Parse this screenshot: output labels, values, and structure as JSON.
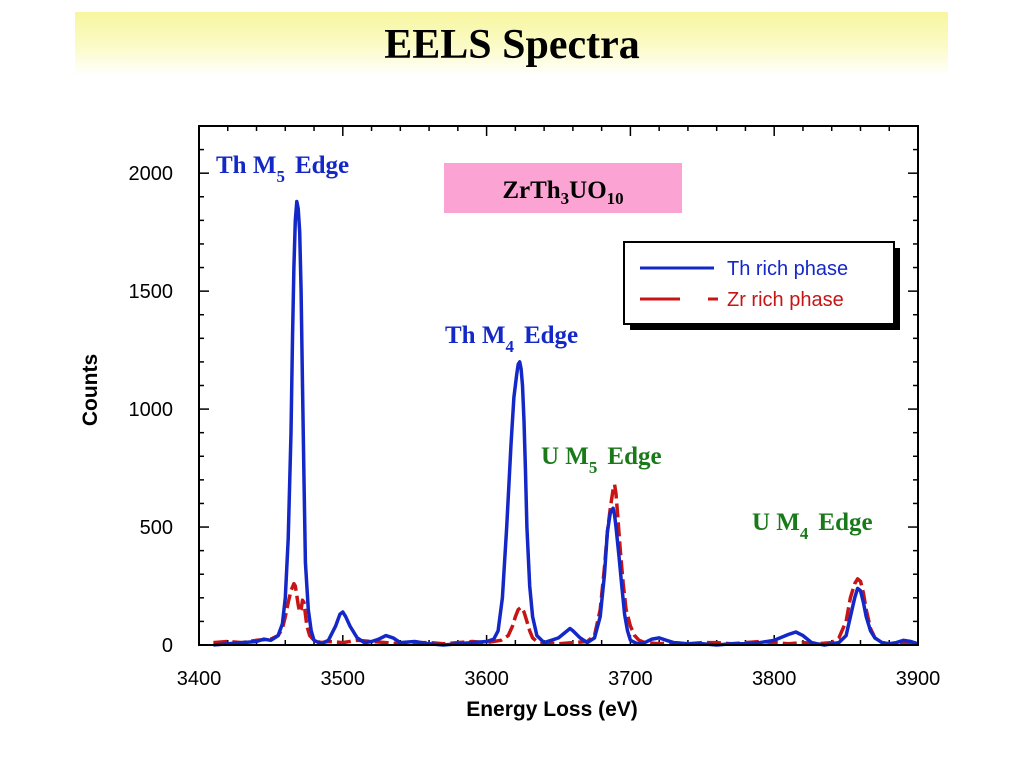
{
  "title": "EELS Spectra",
  "chart_data": {
    "type": "line",
    "xlabel": "Energy Loss (eV)",
    "ylabel": "Counts",
    "xlim": [
      3400,
      3900
    ],
    "ylim": [
      0,
      2200
    ],
    "x_ticks": [
      3400,
      3500,
      3600,
      3700,
      3800,
      3900
    ],
    "y_ticks": [
      0,
      500,
      1000,
      1500,
      2000
    ],
    "grid": false,
    "legend_position": "top-right",
    "series": [
      {
        "name": "Th rich phase",
        "color": "#1428c8",
        "x": [
          3410,
          3420,
          3430,
          3440,
          3445,
          3450,
          3455,
          3458,
          3460,
          3462,
          3464,
          3465,
          3466,
          3467,
          3468,
          3469,
          3470,
          3471,
          3472,
          3473,
          3474,
          3476,
          3478,
          3480,
          3485,
          3490,
          3495,
          3498,
          3500,
          3502,
          3505,
          3510,
          3515,
          3520,
          3525,
          3530,
          3535,
          3540,
          3550,
          3560,
          3570,
          3580,
          3590,
          3600,
          3605,
          3608,
          3611,
          3614,
          3617,
          3619,
          3621,
          3622,
          3623,
          3624,
          3625,
          3626,
          3627,
          3628,
          3630,
          3632,
          3635,
          3640,
          3645,
          3650,
          3655,
          3658,
          3660,
          3665,
          3670,
          3675,
          3679,
          3682,
          3684,
          3686,
          3688,
          3689,
          3690,
          3692,
          3694,
          3696,
          3698,
          3700,
          3705,
          3710,
          3715,
          3720,
          3725,
          3730,
          3740,
          3750,
          3760,
          3770,
          3780,
          3790,
          3800,
          3810,
          3815,
          3820,
          3823,
          3826,
          3830,
          3835,
          3840,
          3845,
          3850,
          3853,
          3856,
          3858,
          3860,
          3862,
          3864,
          3867,
          3870,
          3875,
          3880,
          3885,
          3890,
          3895,
          3900
        ],
        "y": [
          0,
          5,
          10,
          15,
          25,
          20,
          40,
          90,
          200,
          450,
          900,
          1300,
          1600,
          1800,
          1880,
          1850,
          1750,
          1500,
          1100,
          700,
          350,
          150,
          60,
          20,
          5,
          20,
          80,
          130,
          140,
          120,
          80,
          30,
          10,
          15,
          25,
          40,
          30,
          10,
          15,
          5,
          0,
          5,
          10,
          15,
          25,
          60,
          200,
          500,
          850,
          1050,
          1150,
          1190,
          1200,
          1170,
          1100,
          950,
          750,
          500,
          250,
          120,
          40,
          10,
          20,
          30,
          55,
          70,
          60,
          30,
          10,
          30,
          120,
          300,
          480,
          560,
          580,
          550,
          500,
          380,
          250,
          130,
          60,
          20,
          5,
          10,
          25,
          30,
          20,
          10,
          5,
          5,
          0,
          5,
          5,
          10,
          20,
          45,
          55,
          40,
          25,
          10,
          5,
          0,
          5,
          10,
          40,
          120,
          200,
          240,
          230,
          180,
          120,
          60,
          30,
          10,
          5,
          10,
          20,
          15,
          5
        ]
      },
      {
        "name": "Zr rich phase",
        "color": "#c81414",
        "x": [
          3410,
          3420,
          3430,
          3440,
          3450,
          3455,
          3458,
          3460,
          3462,
          3464,
          3466,
          3467,
          3468,
          3469,
          3470,
          3471,
          3472,
          3473,
          3474,
          3475,
          3477,
          3480,
          3485,
          3490,
          3500,
          3510,
          3520,
          3530,
          3540,
          3550,
          3560,
          3570,
          3580,
          3590,
          3600,
          3610,
          3615,
          3618,
          3620,
          3622,
          3624,
          3626,
          3628,
          3630,
          3632,
          3635,
          3640,
          3650,
          3660,
          3670,
          3675,
          3679,
          3682,
          3684,
          3686,
          3688,
          3689,
          3690,
          3691,
          3693,
          3695,
          3697,
          3700,
          3703,
          3706,
          3710,
          3720,
          3730,
          3740,
          3750,
          3760,
          3770,
          3780,
          3790,
          3800,
          3810,
          3820,
          3830,
          3840,
          3845,
          3850,
          3853,
          3856,
          3858,
          3860,
          3862,
          3864,
          3867,
          3870,
          3875,
          3880,
          3890,
          3900
        ],
        "y": [
          10,
          15,
          10,
          20,
          25,
          40,
          70,
          120,
          180,
          230,
          260,
          250,
          210,
          170,
          140,
          150,
          190,
          180,
          130,
          80,
          40,
          20,
          10,
          15,
          10,
          20,
          15,
          10,
          5,
          10,
          10,
          5,
          10,
          15,
          10,
          20,
          40,
          80,
          120,
          150,
          160,
          140,
          100,
          60,
          30,
          15,
          10,
          5,
          10,
          15,
          40,
          150,
          330,
          480,
          580,
          660,
          680,
          640,
          560,
          400,
          260,
          150,
          80,
          40,
          20,
          10,
          5,
          10,
          5,
          10,
          10,
          5,
          10,
          15,
          10,
          5,
          10,
          5,
          10,
          30,
          100,
          200,
          260,
          280,
          270,
          220,
          150,
          70,
          30,
          10,
          5,
          5,
          10
        ]
      }
    ],
    "annotations": [
      {
        "main": "Th M",
        "sub": "5",
        "tail": "Edge",
        "color": "#1428c8"
      },
      {
        "main": "Th M",
        "sub": "4",
        "tail": "Edge",
        "color": "#1428c8"
      },
      {
        "main": "U M",
        "sub": "5",
        "tail": "Edge",
        "color": "#1a7a1a"
      },
      {
        "main": "U M",
        "sub": "4",
        "tail": "Edge",
        "color": "#1a7a1a"
      }
    ],
    "formula_box": {
      "parts": [
        "ZrTh",
        "3",
        "UO",
        "10"
      ],
      "background": "#fba3d3"
    }
  }
}
